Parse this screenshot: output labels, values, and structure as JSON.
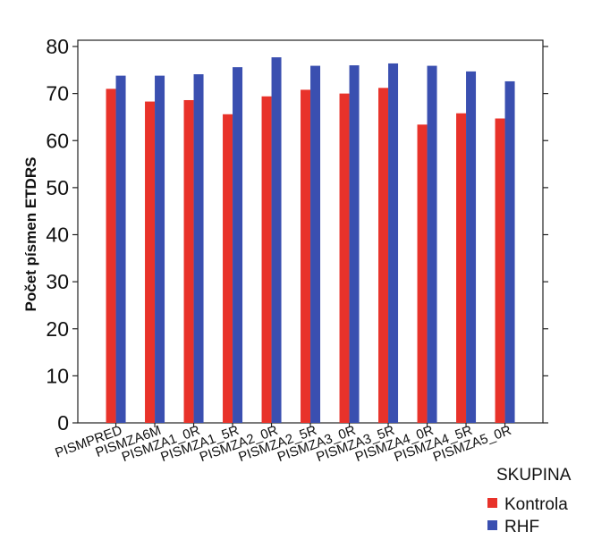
{
  "chart_data": {
    "type": "bar",
    "title": "",
    "xlabel": "",
    "ylabel": "Počet písmen ETDRS",
    "ylim": [
      0,
      80
    ],
    "yticks": [
      "0",
      "10",
      "20",
      "30",
      "40",
      "50",
      "60",
      "70",
      "80"
    ],
    "grid": false,
    "legend_position": "bottom-right",
    "legend_title": "SKUPINA",
    "categories": [
      "PISMPRED",
      "PISMZA6M",
      "PISMZA1_0R",
      "PISMZA1_5R",
      "PISMZA2_0R",
      "PISMZA2_5R",
      "PISMZA3_0R",
      "PISMZA3_5R",
      "PISMZA4_0R",
      "PISMZA4_5R",
      "PISMZA5_0R"
    ],
    "series": [
      {
        "name": "Kontrola",
        "color": "#e8322a",
        "values": [
          71.0,
          68.3,
          68.6,
          65.6,
          69.4,
          70.8,
          70.0,
          71.2,
          63.4,
          65.8,
          64.7
        ]
      },
      {
        "name": "RHF",
        "color": "#3a4fb0",
        "values": [
          73.8,
          73.8,
          74.1,
          75.6,
          77.7,
          75.9,
          76.0,
          76.4,
          75.9,
          74.7,
          72.6
        ]
      }
    ]
  }
}
